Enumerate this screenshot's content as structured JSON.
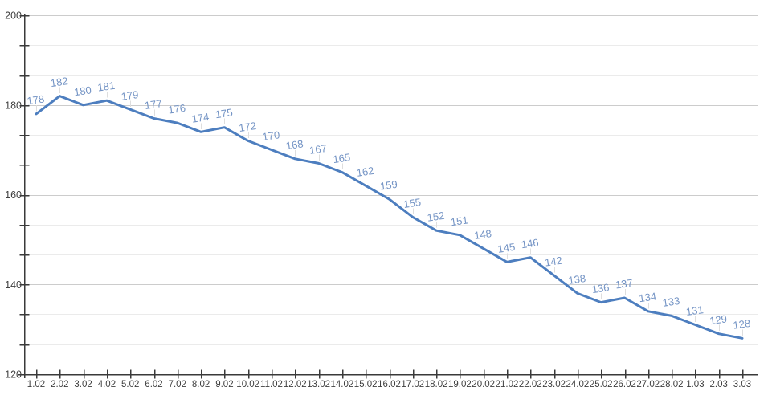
{
  "page": {
    "background": "#ffffff"
  },
  "chart_data": {
    "type": "line",
    "title": "",
    "xlabel": "",
    "ylabel": "",
    "legend": "none",
    "grid": "horizontal-major-and-minor",
    "data_labels_shown": true,
    "categories": [
      "1.02",
      "2.02",
      "3.02",
      "4.02",
      "5.02",
      "6.02",
      "7.02",
      "8.02",
      "9.02",
      "10.02",
      "11.02",
      "12.02",
      "13.02",
      "14.02",
      "15.02",
      "16.02",
      "17.02",
      "18.02",
      "19.02",
      "20.02",
      "21.02",
      "22.02",
      "23.02",
      "24.02",
      "25.02",
      "26.02",
      "27.02",
      "28.02",
      "1.03",
      "2.03",
      "3.03"
    ],
    "values": [
      178,
      182,
      180,
      181,
      179,
      177,
      176,
      174,
      175,
      172,
      170,
      168,
      167,
      165,
      162,
      159,
      155,
      152,
      151,
      148,
      145,
      146,
      142,
      138,
      136,
      137,
      134,
      133,
      131,
      129,
      128
    ],
    "ylim": [
      120,
      200
    ],
    "y_major_ticks": [
      120,
      140,
      160,
      180,
      200
    ],
    "y_minor_divisions_per_major": 3,
    "colors": {
      "line": "#4d7ebf",
      "point_label": "#7494c5",
      "axis_text": "#3f3f3f",
      "axis_line": "#3a3a3a",
      "grid_major": "#cccccc",
      "grid_minor": "#ebebeb",
      "leader_line": "#dedede",
      "background": "#ffffff"
    }
  }
}
